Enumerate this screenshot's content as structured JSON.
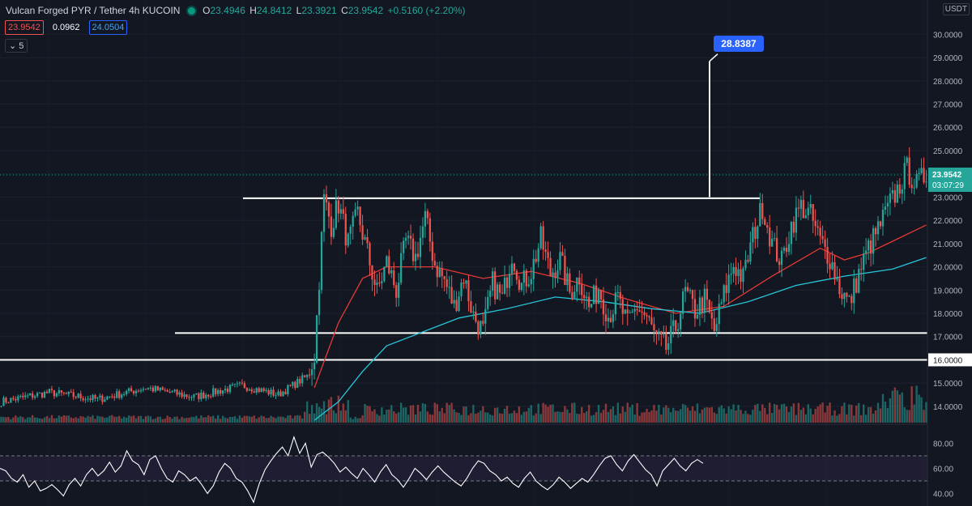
{
  "header": {
    "symbol": "Vulcan Forged PYR / Tether",
    "interval": "4h",
    "exchange": "KUCOIN",
    "open_label": "O",
    "open": "23.4946",
    "high_label": "H",
    "high": "24.8412",
    "low_label": "L",
    "low": "23.3921",
    "close_label": "C",
    "close": "23.9542",
    "change": "+0.5160 (+2.20%)",
    "bid": "23.9542",
    "spread": "0.0962",
    "ask": "24.0504",
    "indicators_collapsed": "5",
    "currency": "USDT"
  },
  "colors": {
    "background": "#131722",
    "up": "#26a69a",
    "down": "#ef5350",
    "ma_fast": "#e53935",
    "ma_slow": "#26c6da",
    "rsi": "#ffffff",
    "callout": "#2962ff",
    "price_tag": "#26a69a"
  },
  "chart_data": {
    "type": "candlestick",
    "y_axis": {
      "min": 13.3,
      "max": 30.5,
      "ticks": [
        "30.0000",
        "29.0000",
        "28.0000",
        "27.0000",
        "26.0000",
        "25.0000",
        "24.0000",
        "23.0000",
        "22.0000",
        "21.0000",
        "20.0000",
        "19.0000",
        "18.0000",
        "17.0000",
        "16.0000",
        "15.0000",
        "14.0000"
      ]
    },
    "last_price": "23.9542",
    "countdown": "03:07:29",
    "target_callout": "28.8387",
    "target_value": 28.8387,
    "measure_base": 23.0,
    "horizontal_levels": [
      {
        "value": 22.95
      },
      {
        "value": 17.15
      },
      {
        "value": 16.0,
        "label": "16.0000"
      }
    ],
    "price_path": [
      [
        0,
        14.2
      ],
      [
        20,
        14.6
      ],
      [
        40,
        14.3
      ],
      [
        60,
        14.8
      ],
      [
        80,
        14.4
      ],
      [
        100,
        14.9
      ],
      [
        115,
        14.5
      ],
      [
        127,
        15.3
      ],
      [
        130,
        16.2
      ],
      [
        132,
        19.5
      ],
      [
        134,
        22.9
      ],
      [
        137,
        21.8
      ],
      [
        140,
        22.7
      ],
      [
        144,
        21.0
      ],
      [
        148,
        22.3
      ],
      [
        152,
        20.6
      ],
      [
        156,
        18.9
      ],
      [
        160,
        20.2
      ],
      [
        164,
        19.0
      ],
      [
        168,
        21.1
      ],
      [
        172,
        20.4
      ],
      [
        176,
        22.1
      ],
      [
        180,
        20.1
      ],
      [
        184,
        19.4
      ],
      [
        188,
        18.3
      ],
      [
        192,
        19.6
      ],
      [
        196,
        17.9
      ],
      [
        200,
        17.2
      ],
      [
        204,
        19.3
      ],
      [
        208,
        18.6
      ],
      [
        212,
        20.6
      ],
      [
        216,
        19.2
      ],
      [
        220,
        19.8
      ],
      [
        224,
        21.2
      ],
      [
        228,
        19.7
      ],
      [
        232,
        20.3
      ],
      [
        236,
        18.9
      ],
      [
        240,
        19.6
      ],
      [
        244,
        18.2
      ],
      [
        248,
        19.1
      ],
      [
        252,
        17.9
      ],
      [
        256,
        18.6
      ],
      [
        260,
        17.5
      ],
      [
        264,
        18.3
      ],
      [
        268,
        17.8
      ],
      [
        272,
        16.9
      ],
      [
        276,
        16.5
      ],
      [
        280,
        17.4
      ],
      [
        284,
        18.9
      ],
      [
        288,
        18.1
      ],
      [
        292,
        18.6
      ],
      [
        296,
        17.2
      ],
      [
        300,
        18.8
      ],
      [
        304,
        20.1
      ],
      [
        308,
        19.5
      ],
      [
        312,
        21.3
      ],
      [
        316,
        22.6
      ],
      [
        320,
        21.0
      ],
      [
        324,
        20.2
      ],
      [
        328,
        21.8
      ],
      [
        332,
        22.6
      ],
      [
        336,
        22.2
      ],
      [
        340,
        21.1
      ],
      [
        344,
        20.4
      ],
      [
        348,
        19.1
      ],
      [
        352,
        18.4
      ],
      [
        356,
        19.7
      ],
      [
        360,
        20.8
      ],
      [
        364,
        21.6
      ],
      [
        368,
        22.5
      ],
      [
        372,
        23.3
      ],
      [
        376,
        24.2
      ],
      [
        380,
        23.5
      ],
      [
        384,
        24.0
      ]
    ],
    "volume": {
      "max": 5.0,
      "baseline_series": "volume"
    },
    "ma_fast_path": [
      [
        130,
        14.8
      ],
      [
        140,
        17.6
      ],
      [
        150,
        19.5
      ],
      [
        160,
        20.0
      ],
      [
        180,
        20.0
      ],
      [
        200,
        19.5
      ],
      [
        220,
        19.8
      ],
      [
        240,
        19.3
      ],
      [
        260,
        18.6
      ],
      [
        280,
        18.0
      ],
      [
        300,
        18.3
      ],
      [
        320,
        19.6
      ],
      [
        340,
        20.8
      ],
      [
        350,
        20.3
      ],
      [
        360,
        20.6
      ],
      [
        370,
        21.1
      ],
      [
        384,
        21.8
      ]
    ],
    "ma_slow_path": [
      [
        130,
        13.4
      ],
      [
        140,
        14.2
      ],
      [
        150,
        15.5
      ],
      [
        160,
        16.6
      ],
      [
        175,
        17.2
      ],
      [
        190,
        17.8
      ],
      [
        210,
        18.2
      ],
      [
        230,
        18.7
      ],
      [
        250,
        18.5
      ],
      [
        270,
        18.2
      ],
      [
        290,
        18.0
      ],
      [
        310,
        18.5
      ],
      [
        330,
        19.2
      ],
      [
        350,
        19.6
      ],
      [
        370,
        19.9
      ],
      [
        384,
        20.4
      ]
    ],
    "rsi": {
      "ticks": [
        "80.00",
        "60.00",
        "40.00"
      ],
      "min": 30,
      "max": 90,
      "upper": 70,
      "lower": 50,
      "values": [
        60,
        58,
        52,
        49,
        55,
        45,
        50,
        42,
        44,
        47,
        43,
        38,
        47,
        52,
        46,
        55,
        60,
        54,
        58,
        65,
        57,
        62,
        74,
        66,
        63,
        55,
        67,
        70,
        60,
        52,
        49,
        58,
        55,
        50,
        53,
        47,
        40,
        46,
        57,
        64,
        60,
        52,
        49,
        42,
        33,
        48,
        59,
        66,
        72,
        77,
        70,
        85,
        72,
        80,
        61,
        71,
        73,
        69,
        64,
        57,
        61,
        56,
        52,
        60,
        55,
        49,
        57,
        63,
        55,
        51,
        45,
        52,
        60,
        56,
        51,
        57,
        62,
        57,
        53,
        49,
        46,
        52,
        60,
        66,
        64,
        58,
        55,
        50,
        53,
        48,
        45,
        52,
        57,
        50,
        46,
        43,
        47,
        53,
        49,
        44,
        48,
        52,
        49,
        55,
        62,
        68,
        70,
        63,
        58,
        66,
        71,
        65,
        59,
        55,
        46,
        58,
        63,
        68,
        62,
        58,
        64,
        67,
        64
      ],
      "last_value": 64
    }
  }
}
